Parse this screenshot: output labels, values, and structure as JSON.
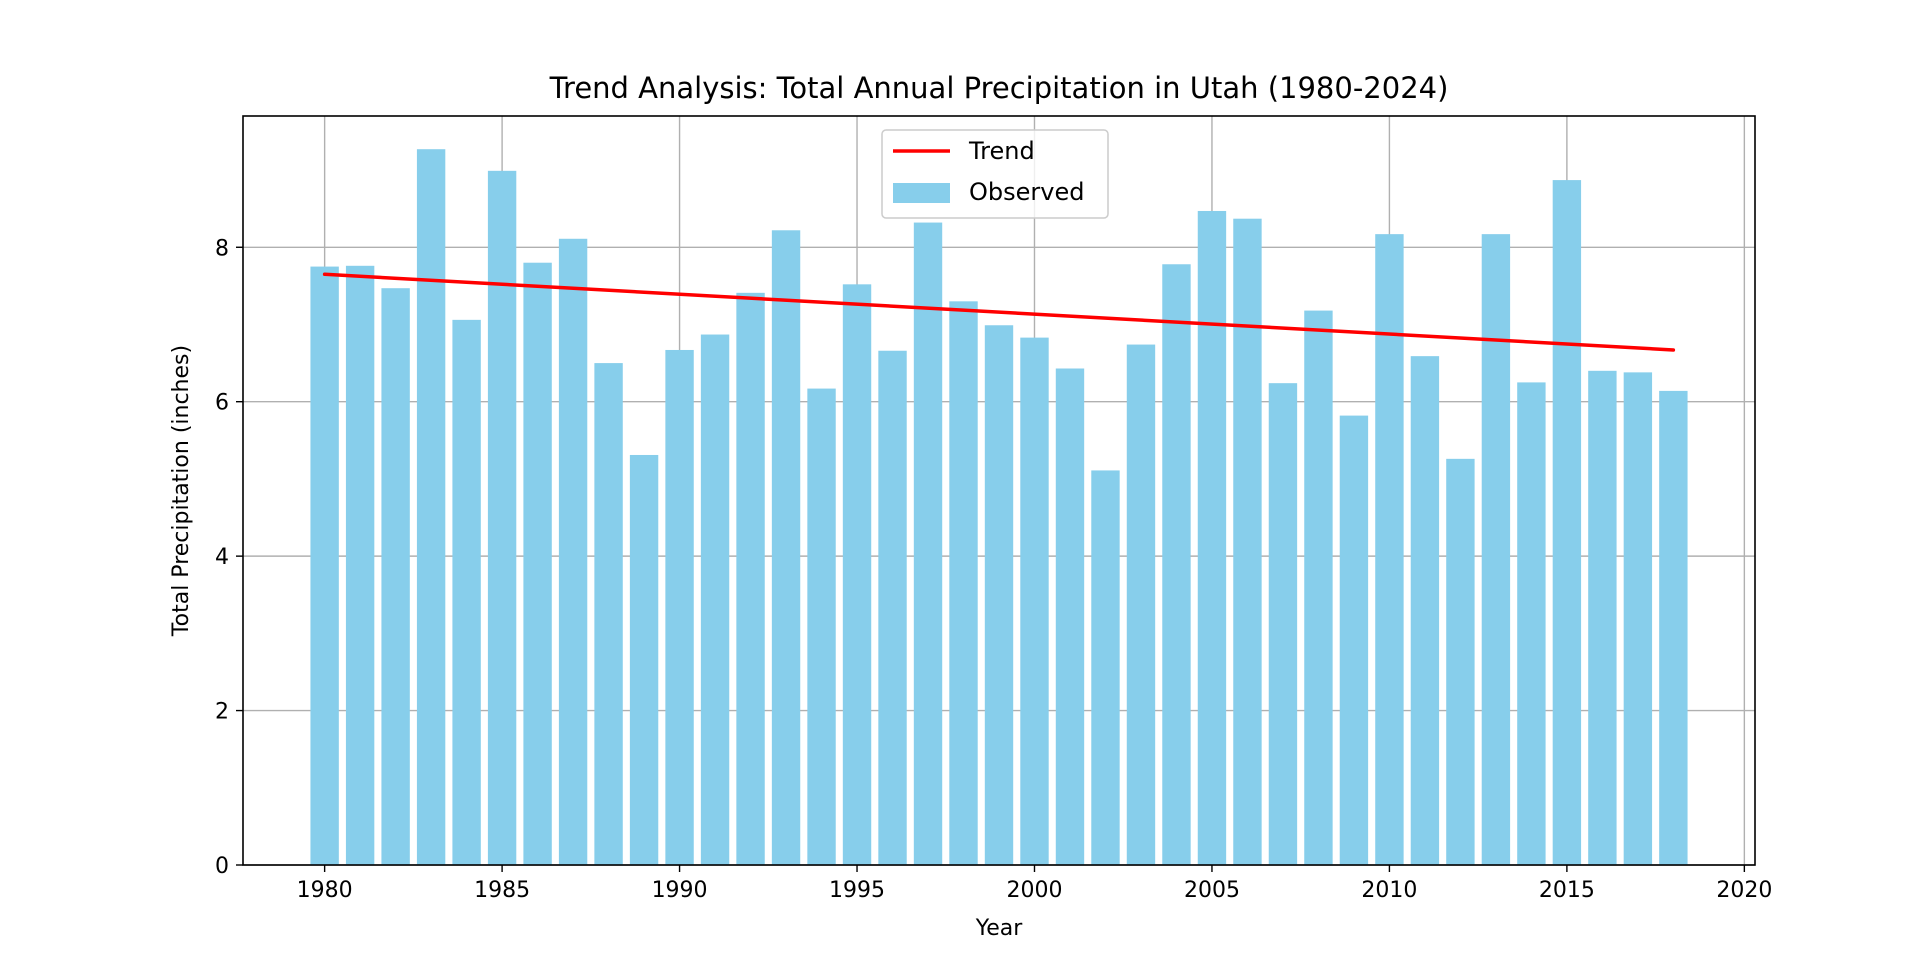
{
  "chart_data": {
    "type": "bar",
    "title": "Trend Analysis: Total Annual Precipitation in Utah (1980-2024)",
    "xlabel": "Year",
    "ylabel": "Total Precipitation (inches)",
    "xlim": [
      1977.7,
      2020.3
    ],
    "ylim": [
      0,
      9.7
    ],
    "x_ticks": [
      1980,
      1985,
      1990,
      1995,
      2000,
      2005,
      2010,
      2015,
      2020
    ],
    "y_ticks": [
      0,
      2,
      4,
      6,
      8
    ],
    "grid": true,
    "legend_position": "upper center",
    "categories": [
      1980,
      1981,
      1982,
      1983,
      1984,
      1985,
      1986,
      1987,
      1988,
      1989,
      1990,
      1991,
      1992,
      1993,
      1994,
      1995,
      1996,
      1997,
      1998,
      1999,
      2000,
      2001,
      2002,
      2003,
      2004,
      2005,
      2006,
      2007,
      2008,
      2009,
      2010,
      2011,
      2012,
      2013,
      2014,
      2015,
      2016,
      2017,
      2018
    ],
    "series": [
      {
        "name": "Observed",
        "type": "bar",
        "color": "#87CEEB",
        "values": [
          7.75,
          7.76,
          7.47,
          9.27,
          7.06,
          8.99,
          7.8,
          8.11,
          6.5,
          5.31,
          6.67,
          6.87,
          7.41,
          8.22,
          6.17,
          7.52,
          6.66,
          8.32,
          7.3,
          6.99,
          6.83,
          6.43,
          5.11,
          6.74,
          7.78,
          8.47,
          8.37,
          6.24,
          7.18,
          5.82,
          8.17,
          6.59,
          5.26,
          8.17,
          6.25,
          8.87,
          6.4,
          6.38,
          6.14
        ]
      },
      {
        "name": "Trend",
        "type": "line",
        "color": "#FF0000",
        "x": [
          1980,
          2018
        ],
        "values": [
          7.65,
          6.67
        ]
      }
    ]
  }
}
